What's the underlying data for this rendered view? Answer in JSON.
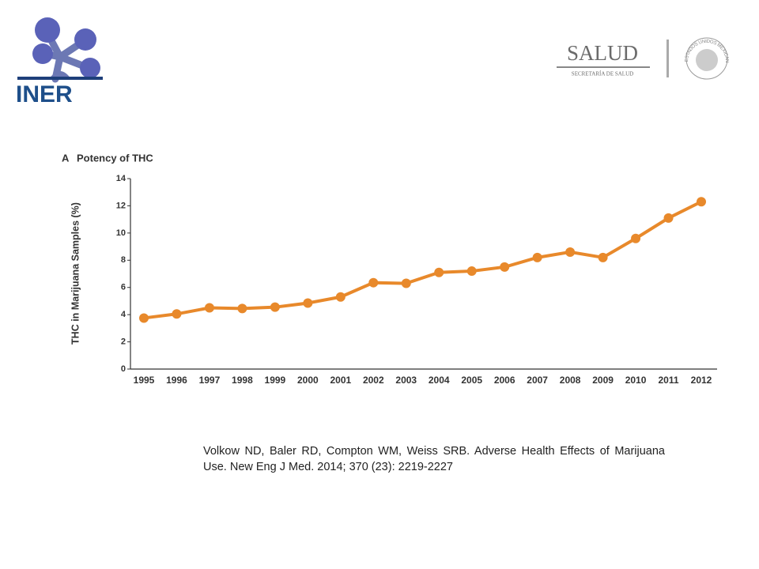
{
  "logos": {
    "left": "INER",
    "right": "SALUD",
    "right_subtitle": "SECRETARÍA DE SALUD",
    "seal": "ESTADOS UNIDOS MEXICANOS"
  },
  "chart_data": {
    "type": "line",
    "panel": "A",
    "title": "Potency of THC",
    "y_label": "THC in Marijuana Samples (%)",
    "categories": [
      "1995",
      "1996",
      "1997",
      "1998",
      "1999",
      "2000",
      "2001",
      "2002",
      "2003",
      "2004",
      "2005",
      "2006",
      "2007",
      "2008",
      "2009",
      "2010",
      "2011",
      "2012"
    ],
    "series": [
      {
        "name": "THC",
        "color": "#e8892b",
        "values": [
          3.75,
          4.05,
          4.5,
          4.45,
          4.55,
          4.85,
          5.3,
          6.35,
          6.3,
          7.1,
          7.2,
          7.5,
          8.2,
          8.6,
          8.2,
          9.6,
          11.1,
          12.3
        ]
      }
    ],
    "ylim": [
      0,
      14
    ],
    "yticks": [
      0,
      2,
      4,
      6,
      8,
      10,
      12,
      14
    ],
    "grid": false
  },
  "citation": "Volkow ND, Baler RD, Compton WM, Weiss SRB. Adverse Health Effects of Marijuana Use. New Eng J Med. 2014; 370 (23): 2219-2227"
}
